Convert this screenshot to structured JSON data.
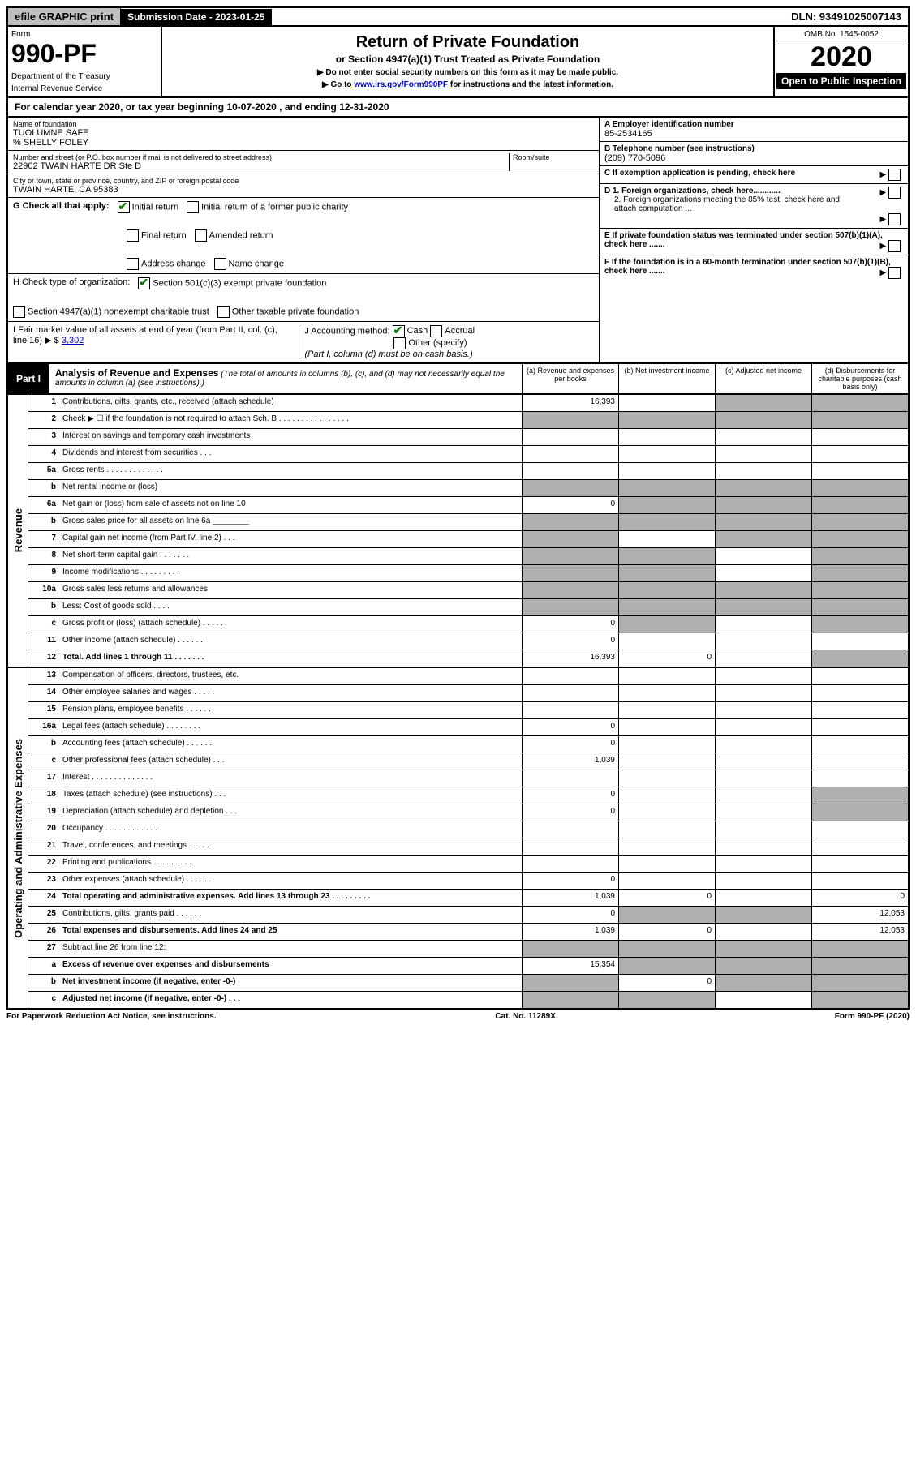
{
  "top": {
    "efile": "efile GRAPHIC print",
    "sub_date": "Submission Date - 2023-01-25",
    "dln": "DLN: 93491025007143"
  },
  "header": {
    "form_word": "Form",
    "form_num": "990-PF",
    "dept": "Department of the Treasury",
    "irs": "Internal Revenue Service",
    "title": "Return of Private Foundation",
    "subtitle": "or Section 4947(a)(1) Trust Treated as Private Foundation",
    "instr1": "▶ Do not enter social security numbers on this form as it may be made public.",
    "instr2_pre": "▶ Go to ",
    "instr2_link": "www.irs.gov/Form990PF",
    "instr2_post": " for instructions and the latest information.",
    "omb": "OMB No. 1545-0052",
    "year": "2020",
    "inspection": "Open to Public Inspection"
  },
  "cal_year": {
    "pre": "For calendar year 2020, or tax year beginning ",
    "begin": "10-07-2020",
    "mid": " , and ending ",
    "end": "12-31-2020"
  },
  "entity": {
    "name_label": "Name of foundation",
    "name": "TUOLUMNE SAFE",
    "careof": "% SHELLY FOLEY",
    "addr_label": "Number and street (or P.O. box number if mail is not delivered to street address)",
    "addr": "22902 TWAIN HARTE DR Ste D",
    "room_label": "Room/suite",
    "city_label": "City or town, state or province, country, and ZIP or foreign postal code",
    "city": "TWAIN HARTE, CA  95383",
    "ein_label": "A Employer identification number",
    "ein": "85-2534165",
    "tel_label": "B Telephone number (see instructions)",
    "tel": "(209) 770-5096",
    "c_label": "C If exemption application is pending, check here",
    "d1": "D 1. Foreign organizations, check here............",
    "d2": "2. Foreign organizations meeting the 85% test, check here and attach computation ...",
    "e_label": "E If private foundation status was terminated under section 507(b)(1)(A), check here .......",
    "f_label": "F If the foundation is in a 60-month termination under section 507(b)(1)(B), check here ......."
  },
  "g": {
    "label": "G Check all that apply:",
    "initial": "Initial return",
    "initial_former": "Initial return of a former public charity",
    "final": "Final return",
    "amended": "Amended return",
    "addr_change": "Address change",
    "name_change": "Name change"
  },
  "h": {
    "label": "H Check type of organization:",
    "c3": "Section 501(c)(3) exempt private foundation",
    "a1": "Section 4947(a)(1) nonexempt charitable trust",
    "other": "Other taxable private foundation"
  },
  "i": {
    "label": "I Fair market value of all assets at end of year (from Part II, col. (c), line 16) ▶ $",
    "val": "3,302"
  },
  "j": {
    "label": "J Accounting method:",
    "cash": "Cash",
    "accrual": "Accrual",
    "other": "Other (specify)",
    "note": "(Part I, column (d) must be on cash basis.)"
  },
  "part1": {
    "label": "Part I",
    "title": "Analysis of Revenue and Expenses",
    "note": "(The total of amounts in columns (b), (c), and (d) may not necessarily equal the amounts in column (a) (see instructions).)",
    "col_a": "(a) Revenue and expenses per books",
    "col_b": "(b) Net investment income",
    "col_c": "(c) Adjusted net income",
    "col_d": "(d) Disbursements for charitable purposes (cash basis only)"
  },
  "sections": {
    "revenue": "Revenue",
    "expenses": "Operating and Administrative Expenses"
  },
  "rows": [
    {
      "n": "1",
      "d": "Contributions, gifts, grants, etc., received (attach schedule)",
      "a": "16,393",
      "grey_b": false,
      "grey_c": true,
      "grey_d": true
    },
    {
      "n": "2",
      "d": "Check ▶ ☐ if the foundation is not required to attach Sch. B   .   .   .   .   .   .   .   .   .   .   .   .   .   .   .   .",
      "grey_a": true,
      "grey_b": true,
      "grey_c": true,
      "grey_d": true
    },
    {
      "n": "3",
      "d": "Interest on savings and temporary cash investments"
    },
    {
      "n": "4",
      "d": "Dividends and interest from securities   .   .   ."
    },
    {
      "n": "5a",
      "d": "Gross rents   .   .   .   .   .   .   .   .   .   .   .   .   ."
    },
    {
      "n": "b",
      "d": "Net rental income or (loss)",
      "grey_a": true,
      "grey_b": true,
      "grey_c": true,
      "grey_d": true
    },
    {
      "n": "6a",
      "d": "Net gain or (loss) from sale of assets not on line 10",
      "a": "0",
      "grey_b": true,
      "grey_c": true,
      "grey_d": true
    },
    {
      "n": "b",
      "d": "Gross sales price for all assets on line 6a ________",
      "grey_a": true,
      "grey_b": true,
      "grey_c": true,
      "grey_d": true
    },
    {
      "n": "7",
      "d": "Capital gain net income (from Part IV, line 2)   .   .   .",
      "grey_a": true,
      "grey_c": true,
      "grey_d": true
    },
    {
      "n": "8",
      "d": "Net short-term capital gain   .   .   .   .   .   .   .",
      "grey_a": true,
      "grey_b": true,
      "grey_d": true
    },
    {
      "n": "9",
      "d": "Income modifications   .   .   .   .   .   .   .   .   .",
      "grey_a": true,
      "grey_b": true,
      "grey_d": true
    },
    {
      "n": "10a",
      "d": "Gross sales less returns and allowances",
      "grey_a": true,
      "grey_b": true,
      "grey_c": true,
      "grey_d": true
    },
    {
      "n": "b",
      "d": "Less: Cost of goods sold   .   .   .   .",
      "grey_a": true,
      "grey_b": true,
      "grey_c": true,
      "grey_d": true
    },
    {
      "n": "c",
      "d": "Gross profit or (loss) (attach schedule)   .   .   .   .   .",
      "a": "0",
      "grey_b": true,
      "grey_d": true
    },
    {
      "n": "11",
      "d": "Other income (attach schedule)   .   .   .   .   .   .",
      "a": "0"
    },
    {
      "n": "12",
      "d": "Total. Add lines 1 through 11   .   .   .   .   .   .   .",
      "a": "16,393",
      "b": "0",
      "grey_d": true,
      "bold": true
    }
  ],
  "exp_rows": [
    {
      "n": "13",
      "d": "Compensation of officers, directors, trustees, etc."
    },
    {
      "n": "14",
      "d": "Other employee salaries and wages   .   .   .   .   ."
    },
    {
      "n": "15",
      "d": "Pension plans, employee benefits   .   .   .   .   .   ."
    },
    {
      "n": "16a",
      "d": "Legal fees (attach schedule)   .   .   .   .   .   .   .   .",
      "a": "0"
    },
    {
      "n": "b",
      "d": "Accounting fees (attach schedule)   .   .   .   .   .   .",
      "a": "0"
    },
    {
      "n": "c",
      "d": "Other professional fees (attach schedule)   .   .   .",
      "a": "1,039"
    },
    {
      "n": "17",
      "d": "Interest   .   .   .   .   .   .   .   .   .   .   .   .   .   ."
    },
    {
      "n": "18",
      "d": "Taxes (attach schedule) (see instructions)   .   .   .",
      "a": "0",
      "grey_d": true
    },
    {
      "n": "19",
      "d": "Depreciation (attach schedule) and depletion   .   .   .",
      "a": "0",
      "grey_d": true
    },
    {
      "n": "20",
      "d": "Occupancy   .   .   .   .   .   .   .   .   .   .   .   .   ."
    },
    {
      "n": "21",
      "d": "Travel, conferences, and meetings   .   .   .   .   .   ."
    },
    {
      "n": "22",
      "d": "Printing and publications   .   .   .   .   .   .   .   .   ."
    },
    {
      "n": "23",
      "d": "Other expenses (attach schedule)   .   .   .   .   .   .",
      "a": "0"
    },
    {
      "n": "24",
      "d": "Total operating and administrative expenses. Add lines 13 through 23   .   .   .   .   .   .   .   .   .",
      "a": "1,039",
      "b": "0",
      "d_": "0",
      "bold": true
    },
    {
      "n": "25",
      "d": "Contributions, gifts, grants paid   .   .   .   .   .   .",
      "a": "0",
      "grey_b": true,
      "grey_c": true,
      "d_": "12,053"
    },
    {
      "n": "26",
      "d": "Total expenses and disbursements. Add lines 24 and 25",
      "a": "1,039",
      "b": "0",
      "d_": "12,053",
      "bold": true
    },
    {
      "n": "27",
      "d": "Subtract line 26 from line 12:",
      "grey_a": true,
      "grey_b": true,
      "grey_c": true,
      "grey_d": true
    },
    {
      "n": "a",
      "d": "Excess of revenue over expenses and disbursements",
      "a": "15,354",
      "grey_b": true,
      "grey_c": true,
      "grey_d": true,
      "bold": true
    },
    {
      "n": "b",
      "d": "Net investment income (if negative, enter -0-)",
      "grey_a": true,
      "b": "0",
      "grey_c": true,
      "grey_d": true,
      "bold": true
    },
    {
      "n": "c",
      "d": "Adjusted net income (if negative, enter -0-)   .   .   .",
      "grey_a": true,
      "grey_b": true,
      "grey_d": true,
      "bold": true
    }
  ],
  "footer": {
    "left": "For Paperwork Reduction Act Notice, see instructions.",
    "mid": "Cat. No. 11289X",
    "right": "Form 990-PF (2020)"
  }
}
